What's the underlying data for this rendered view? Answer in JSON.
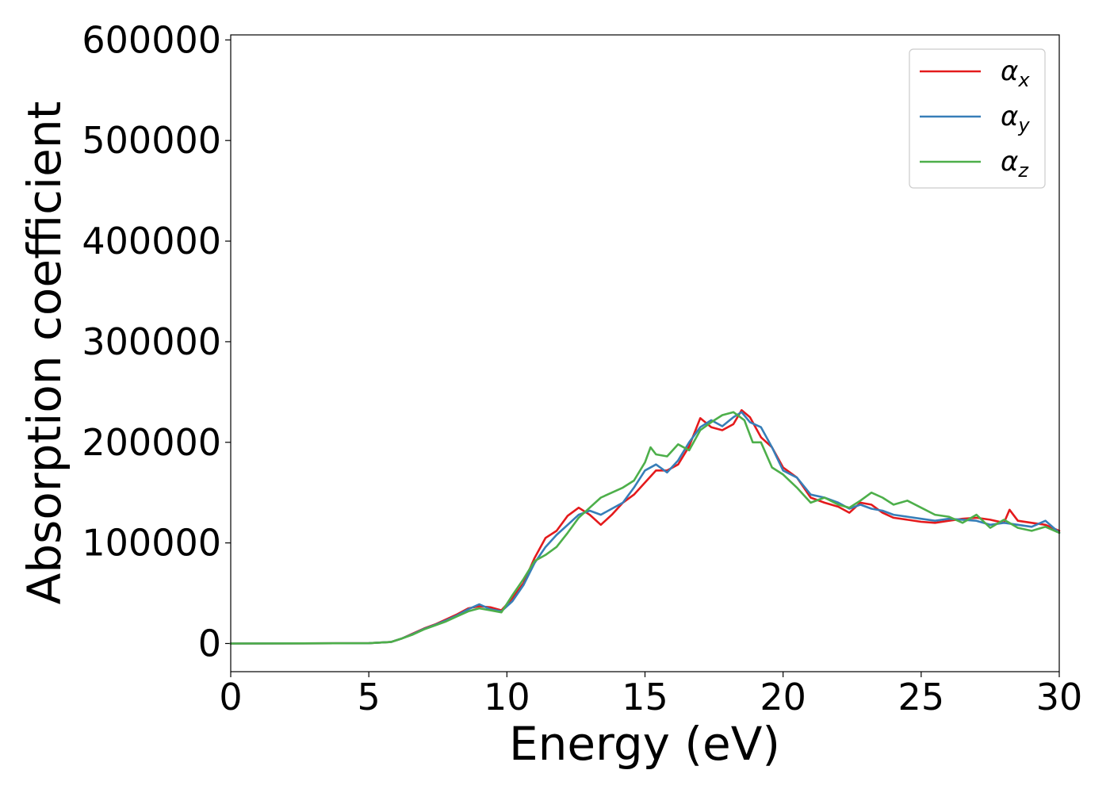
{
  "chart_data": {
    "type": "line",
    "title": "",
    "xlabel": "Energy (eV)",
    "ylabel": "Absorption coefficient",
    "xlim": [
      0,
      30
    ],
    "ylim": [
      -28000,
      605000
    ],
    "xticks": [
      0,
      5,
      10,
      15,
      20,
      25,
      30
    ],
    "xtick_labels": [
      "0",
      "5",
      "10",
      "15",
      "20",
      "25",
      "30"
    ],
    "yticks": [
      0,
      100000,
      200000,
      300000,
      400000,
      500000,
      600000
    ],
    "ytick_labels": [
      "0",
      "100000",
      "200000",
      "300000",
      "400000",
      "500000",
      "600000"
    ],
    "grid": false,
    "legend_position": "top-right",
    "series": [
      {
        "name": "αx",
        "symbol": "α",
        "subscript": "x",
        "color": "#e41a1c",
        "x": [
          0,
          5,
          5.8,
          6.2,
          6.6,
          7.0,
          7.4,
          7.8,
          8.2,
          8.6,
          9.0,
          9.4,
          9.8,
          10.2,
          10.6,
          11.0,
          11.4,
          11.8,
          12.2,
          12.6,
          13.0,
          13.4,
          13.8,
          14.2,
          14.6,
          15.0,
          15.4,
          15.8,
          16.2,
          16.6,
          17.0,
          17.4,
          17.8,
          18.2,
          18.5,
          18.8,
          19.2,
          19.6,
          20.0,
          20.5,
          21.0,
          21.5,
          22.0,
          22.4,
          22.8,
          23.2,
          23.6,
          24.0,
          24.5,
          25.0,
          25.5,
          26.0,
          26.5,
          27.0,
          27.5,
          28.0,
          28.2,
          28.5,
          29.0,
          29.5,
          30.0
        ],
        "y": [
          0,
          300,
          1500,
          5000,
          10000,
          15000,
          19000,
          24000,
          29000,
          35000,
          37000,
          36000,
          33000,
          45000,
          60000,
          85000,
          105000,
          112000,
          127000,
          135000,
          128000,
          118000,
          128000,
          140000,
          148000,
          160000,
          172000,
          172000,
          178000,
          196000,
          224000,
          215000,
          212000,
          218000,
          232000,
          225000,
          205000,
          195000,
          175000,
          165000,
          145000,
          140000,
          136000,
          130000,
          140000,
          138000,
          130000,
          125000,
          123000,
          121000,
          120000,
          122000,
          124000,
          125000,
          123000,
          120000,
          133000,
          122000,
          120000,
          118000,
          112000
        ]
      },
      {
        "name": "αy",
        "symbol": "α",
        "subscript": "y",
        "color": "#377eb8",
        "x": [
          0,
          5,
          5.8,
          6.2,
          6.6,
          7.0,
          7.4,
          7.8,
          8.2,
          8.6,
          9.0,
          9.4,
          9.8,
          10.2,
          10.6,
          11.0,
          11.4,
          11.8,
          12.2,
          12.6,
          13.0,
          13.4,
          13.8,
          14.2,
          14.6,
          15.0,
          15.4,
          15.8,
          16.2,
          16.6,
          17.0,
          17.4,
          17.8,
          18.2,
          18.5,
          18.8,
          19.2,
          19.6,
          20.0,
          20.5,
          21.0,
          21.5,
          22.0,
          22.4,
          22.8,
          23.2,
          23.6,
          24.0,
          24.5,
          25.0,
          25.5,
          26.0,
          26.5,
          27.0,
          27.5,
          28.0,
          28.5,
          29.0,
          29.5,
          30.0
        ],
        "y": [
          0,
          300,
          1500,
          5000,
          9500,
          14500,
          18500,
          23000,
          28000,
          34000,
          39000,
          34000,
          32000,
          42000,
          58000,
          80000,
          96000,
          108000,
          118000,
          128000,
          132000,
          128000,
          134000,
          140000,
          155000,
          172000,
          178000,
          170000,
          182000,
          200000,
          215000,
          222000,
          216000,
          225000,
          230000,
          220000,
          215000,
          195000,
          172000,
          165000,
          148000,
          145000,
          140000,
          134000,
          138000,
          134000,
          132000,
          128000,
          126000,
          124000,
          122000,
          124000,
          123000,
          122000,
          118000,
          120000,
          118000,
          116000,
          122000,
          110000
        ]
      },
      {
        "name": "αz",
        "symbol": "α",
        "subscript": "z",
        "color": "#4daf4a",
        "x": [
          0,
          5,
          5.8,
          6.2,
          6.6,
          7.0,
          7.4,
          7.8,
          8.2,
          8.6,
          9.0,
          9.4,
          9.8,
          10.2,
          10.6,
          11.0,
          11.4,
          11.8,
          12.2,
          12.6,
          13.0,
          13.4,
          13.8,
          14.2,
          14.6,
          15.0,
          15.2,
          15.4,
          15.8,
          16.2,
          16.6,
          17.0,
          17.4,
          17.8,
          18.2,
          18.6,
          18.9,
          19.2,
          19.6,
          20.0,
          20.5,
          21.0,
          21.5,
          22.0,
          22.4,
          22.8,
          23.2,
          23.6,
          24.0,
          24.5,
          25.0,
          25.5,
          26.0,
          26.5,
          27.0,
          27.5,
          28.0,
          28.5,
          29.0,
          29.5,
          30.0
        ],
        "y": [
          0,
          300,
          1500,
          5000,
          9000,
          14000,
          18000,
          22000,
          27000,
          32000,
          35000,
          33000,
          31000,
          48000,
          64000,
          82000,
          88000,
          96000,
          110000,
          125000,
          135000,
          145000,
          150000,
          155000,
          162000,
          180000,
          195000,
          188000,
          186000,
          198000,
          192000,
          212000,
          220000,
          227000,
          230000,
          222000,
          200000,
          200000,
          175000,
          168000,
          155000,
          140000,
          145000,
          138000,
          135000,
          142000,
          150000,
          145000,
          138000,
          142000,
          135000,
          128000,
          126000,
          120000,
          128000,
          115000,
          123000,
          115000,
          112000,
          116000,
          110000
        ]
      }
    ]
  }
}
